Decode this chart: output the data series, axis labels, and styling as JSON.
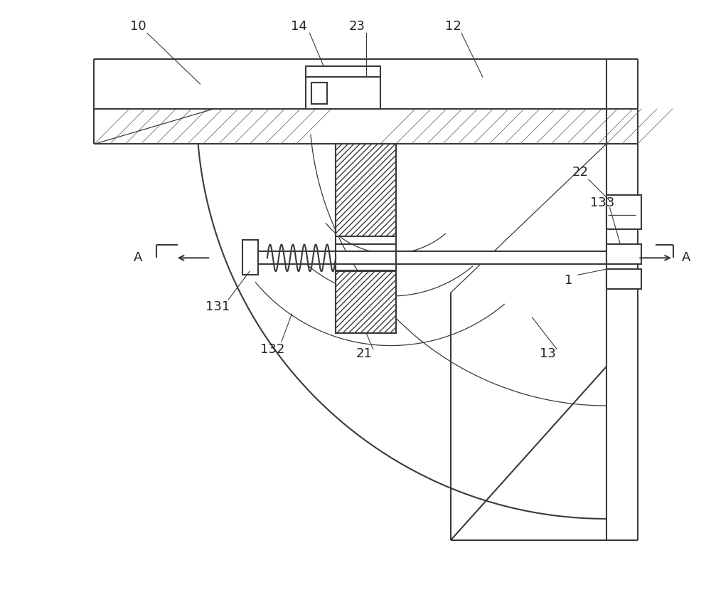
{
  "bg_color": "#ffffff",
  "line_color": "#3a3a3a",
  "fig_width": 10.0,
  "fig_height": 8.36,
  "lw_main": 1.5,
  "lw_thin": 0.9,
  "lw_leader": 0.8
}
